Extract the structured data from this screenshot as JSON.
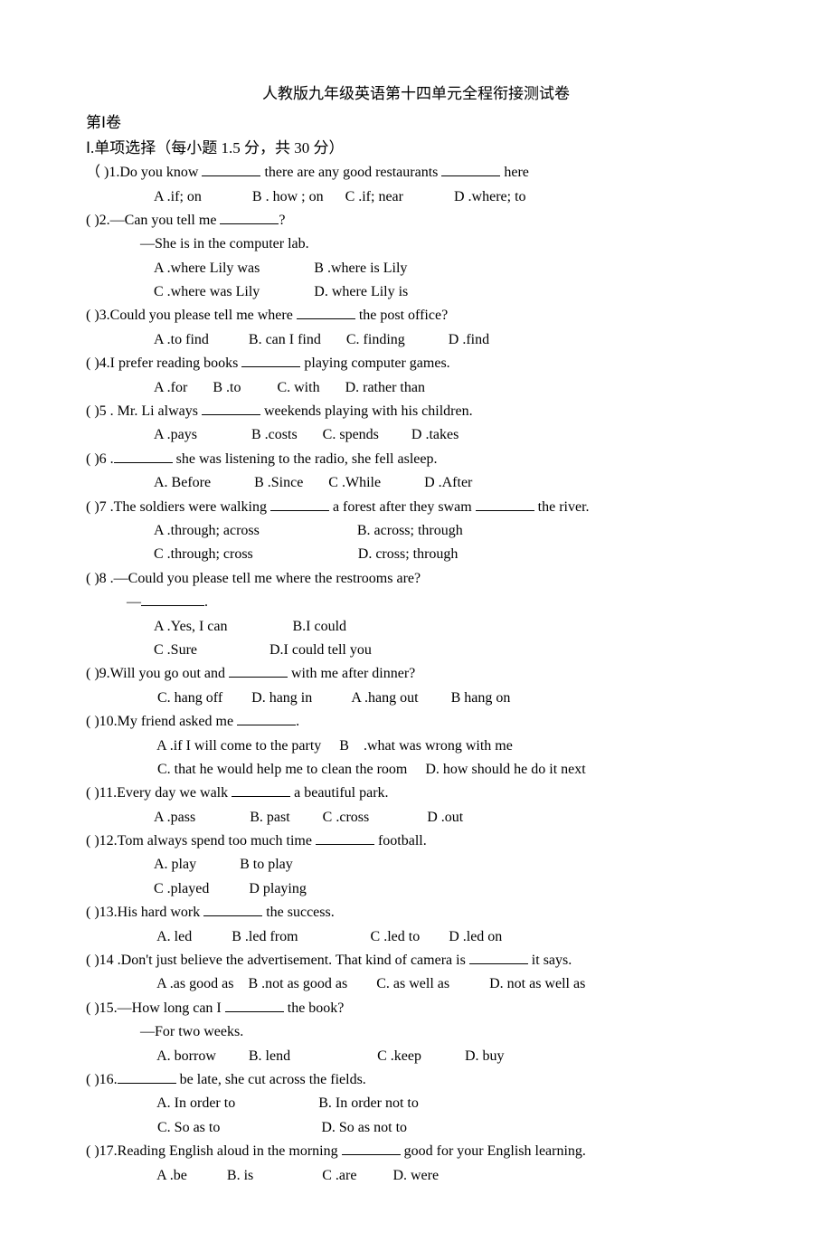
{
  "title": "人教版九年级英语第十四单元全程衔接测试卷",
  "part_heading": "第Ⅰ卷",
  "section_heading": "Ⅰ.单项选择（每小题 1.5 分，共 30 分）",
  "questions": [
    {
      "num": "1",
      "paren_style": "wide",
      "stem_pre": ".Do you know ",
      "stem_mid": " there are any good restaurants ",
      "stem_post": "    here",
      "blanks": 2,
      "opts": "A .if; on              B . how ; on      C .if; near              D .where; to"
    },
    {
      "num": "2",
      "stem_pre": ".—Can you tell me ",
      "stem_post": "?",
      "blanks": 1,
      "sub": "—She is in the computer lab.",
      "opts_lines": [
        "A .where Lily was               B .where is Lily",
        "C .where was Lily               D. where Lily is"
      ]
    },
    {
      "num": "3",
      "stem_pre": ".Could you please tell me where ",
      "stem_post": " the post office?",
      "blanks": 1,
      "opts": "A .to find           B. can I find       C. finding            D .find"
    },
    {
      "num": "4",
      "stem_pre": ".I prefer reading books ",
      "stem_post": " playing computer games.",
      "blanks": 1,
      "opts": "A .for       B .to          C. with       D. rather than"
    },
    {
      "num": "5",
      "stem_pre": " . Mr. Li always ",
      "stem_post": " weekends playing with his children.",
      "blanks": 1,
      "opts": "A .pays               B .costs       C. spends         D .takes"
    },
    {
      "num": "6",
      "stem_pre": " .",
      "stem_post": " she was listening to the radio, she fell asleep.",
      "blanks": 1,
      "opts": "A. Before            B .Since       C .While            D .After"
    },
    {
      "num": "7",
      "stem_pre": " .The soldiers were walking ",
      "stem_mid": " a forest after they swam ",
      "stem_post": " the river.",
      "blanks": 2,
      "opts_lines": [
        "A .through; across                           B. across; through",
        "C .through; cross                             D. cross; through"
      ]
    },
    {
      "num": "8",
      "stem_pre": " .—Could you please tell me where the restrooms are?",
      "blanks": 0,
      "sub_blank_pre": "—",
      "sub_blank_post": ".",
      "opts_lines": [
        "A .Yes, I can                  B.I could",
        "C .Sure                    D.I could tell you"
      ],
      "dot_after_opts": true
    },
    {
      "num": "9",
      "stem_pre": ".Will you go out and ",
      "stem_post": " with me after dinner?",
      "blanks": 1,
      "opts": " C. hang off        D. hang in           A .hang out         B hang on"
    },
    {
      "num": "10",
      "stem_pre": ".My friend asked me ",
      "stem_post": ".",
      "blanks": 1,
      "opts_lines": [
        " A .if I will come to the party     B    .what was wrong with me",
        " C. that he would help me to clean the room     D. how should he do it next"
      ]
    },
    {
      "num": "11",
      "stem_pre": ".Every day we walk ",
      "stem_post": " a beautiful park.",
      "blanks": 1,
      "opts": "A .pass               B. past         C .cross                D .out"
    },
    {
      "num": "12",
      "stem_pre": ".Tom always spend too much time ",
      "stem_post": " football.",
      "blanks": 1,
      "opts_lines": [
        "A. play            B to play",
        "C .played           D playing"
      ]
    },
    {
      "num": "13",
      "stem_pre": ".His hard work ",
      "stem_post": " the success.",
      "blanks": 1,
      "opts": " A. led           B .led from                    C .led to        D .led on"
    },
    {
      "num": "14",
      "stem_pre": " .Don't just believe the advertisement. That kind of camera is ",
      "stem_post": " it says.",
      "blanks": 1,
      "opts": " A .as good as    B .not as good as        C. as well as           D. not as well as"
    },
    {
      "num": "15",
      "stem_pre": ".—How long can I ",
      "stem_post": " the book?",
      "blanks": 1,
      "sub": "—For two weeks.",
      "opts": " A. borrow         B. lend                        C .keep            D. buy"
    },
    {
      "num": "16",
      "stem_pre": ".",
      "stem_post": " be late, she cut across the fields.",
      "blanks": 1,
      "opts_lines": [
        " A. In order to                       B. In order not to",
        " C. So as to                            D. So as not to"
      ]
    },
    {
      "num": "17",
      "stem_pre": ".Reading English aloud in the morning ",
      "stem_post": " good for your English learning.",
      "blanks": 1,
      "opts": " A .be           B. is                   C .are          D. were"
    }
  ]
}
